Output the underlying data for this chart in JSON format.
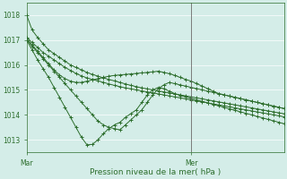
{
  "xlabel": "Pression niveau de la mer( hPa )",
  "background_color": "#d4ede8",
  "grid_color": "#ffffff",
  "line_color": "#2d6e2d",
  "ylim": [
    1012.5,
    1018.5
  ],
  "yticks": [
    1013,
    1014,
    1015,
    1016,
    1017,
    1018
  ],
  "xlim": [
    0,
    47
  ],
  "mar_x": 0,
  "mer_x": 30,
  "vline_x": 30,
  "series": [
    [
      1018.0,
      1017.4,
      1017.1,
      1016.85,
      1016.6,
      1016.45,
      1016.3,
      1016.15,
      1016.0,
      1015.9,
      1015.8,
      1015.7,
      1015.62,
      1015.55,
      1015.48,
      1015.42,
      1015.36,
      1015.3,
      1015.24,
      1015.18,
      1015.13,
      1015.08,
      1015.04,
      1015.0,
      1014.96,
      1014.92,
      1014.88,
      1014.84,
      1014.8,
      1014.76,
      1014.72,
      1014.68,
      1014.64,
      1014.6,
      1014.56,
      1014.52,
      1014.48,
      1014.44,
      1014.4,
      1014.36,
      1014.32,
      1014.28,
      1014.24,
      1014.2,
      1014.16,
      1014.12,
      1014.08,
      1014.04
    ],
    [
      1017.1,
      1016.9,
      1016.7,
      1016.5,
      1016.35,
      1016.2,
      1016.05,
      1015.9,
      1015.78,
      1015.66,
      1015.56,
      1015.48,
      1015.42,
      1015.36,
      1015.3,
      1015.24,
      1015.18,
      1015.13,
      1015.08,
      1015.04,
      1015.0,
      1014.96,
      1014.92,
      1014.88,
      1014.84,
      1014.8,
      1014.76,
      1014.72,
      1014.68,
      1014.64,
      1014.6,
      1014.56,
      1014.52,
      1014.48,
      1014.44,
      1014.4,
      1014.36,
      1014.32,
      1014.28,
      1014.24,
      1014.2,
      1014.16,
      1014.12,
      1014.08,
      1014.04,
      1014.0,
      1013.96,
      1013.92
    ],
    [
      1017.0,
      1016.75,
      1016.5,
      1016.25,
      1016.0,
      1015.75,
      1015.5,
      1015.25,
      1015.0,
      1014.75,
      1014.5,
      1014.25,
      1014.0,
      1013.75,
      1013.6,
      1013.5,
      1013.45,
      1013.4,
      1013.6,
      1013.8,
      1014.0,
      1014.2,
      1014.5,
      1014.8,
      1015.05,
      1015.2,
      1015.3,
      1015.25,
      1015.2,
      1015.15,
      1015.1,
      1015.05,
      1015.0,
      1014.95,
      1014.9,
      1014.85,
      1014.8,
      1014.75,
      1014.7,
      1014.65,
      1014.6,
      1014.55,
      1014.5,
      1014.45,
      1014.4,
      1014.35,
      1014.3,
      1014.25
    ],
    [
      1017.0,
      1016.6,
      1016.2,
      1015.85,
      1015.5,
      1015.1,
      1014.7,
      1014.3,
      1013.9,
      1013.5,
      1013.1,
      1012.8,
      1012.82,
      1013.0,
      1013.25,
      1013.45,
      1013.6,
      1013.7,
      1013.9,
      1014.05,
      1014.2,
      1014.5,
      1014.8,
      1015.0,
      1015.1,
      1015.05,
      1014.95,
      1014.85,
      1014.78,
      1014.72,
      1014.66,
      1014.6,
      1014.54,
      1014.48,
      1014.42,
      1014.36,
      1014.3,
      1014.24,
      1014.18,
      1014.12,
      1014.06,
      1014.0,
      1013.94,
      1013.88,
      1013.82,
      1013.76,
      1013.7,
      1013.64
    ],
    [
      1017.05,
      1016.8,
      1016.55,
      1016.3,
      1016.05,
      1015.8,
      1015.6,
      1015.45,
      1015.35,
      1015.3,
      1015.3,
      1015.35,
      1015.4,
      1015.45,
      1015.5,
      1015.55,
      1015.58,
      1015.6,
      1015.62,
      1015.64,
      1015.66,
      1015.68,
      1015.7,
      1015.72,
      1015.75,
      1015.7,
      1015.65,
      1015.58,
      1015.5,
      1015.42,
      1015.35,
      1015.25,
      1015.15,
      1015.05,
      1014.95,
      1014.85,
      1014.8,
      1014.75,
      1014.7,
      1014.65,
      1014.6,
      1014.55,
      1014.5,
      1014.45,
      1014.4,
      1014.35,
      1014.3,
      1014.25
    ]
  ]
}
